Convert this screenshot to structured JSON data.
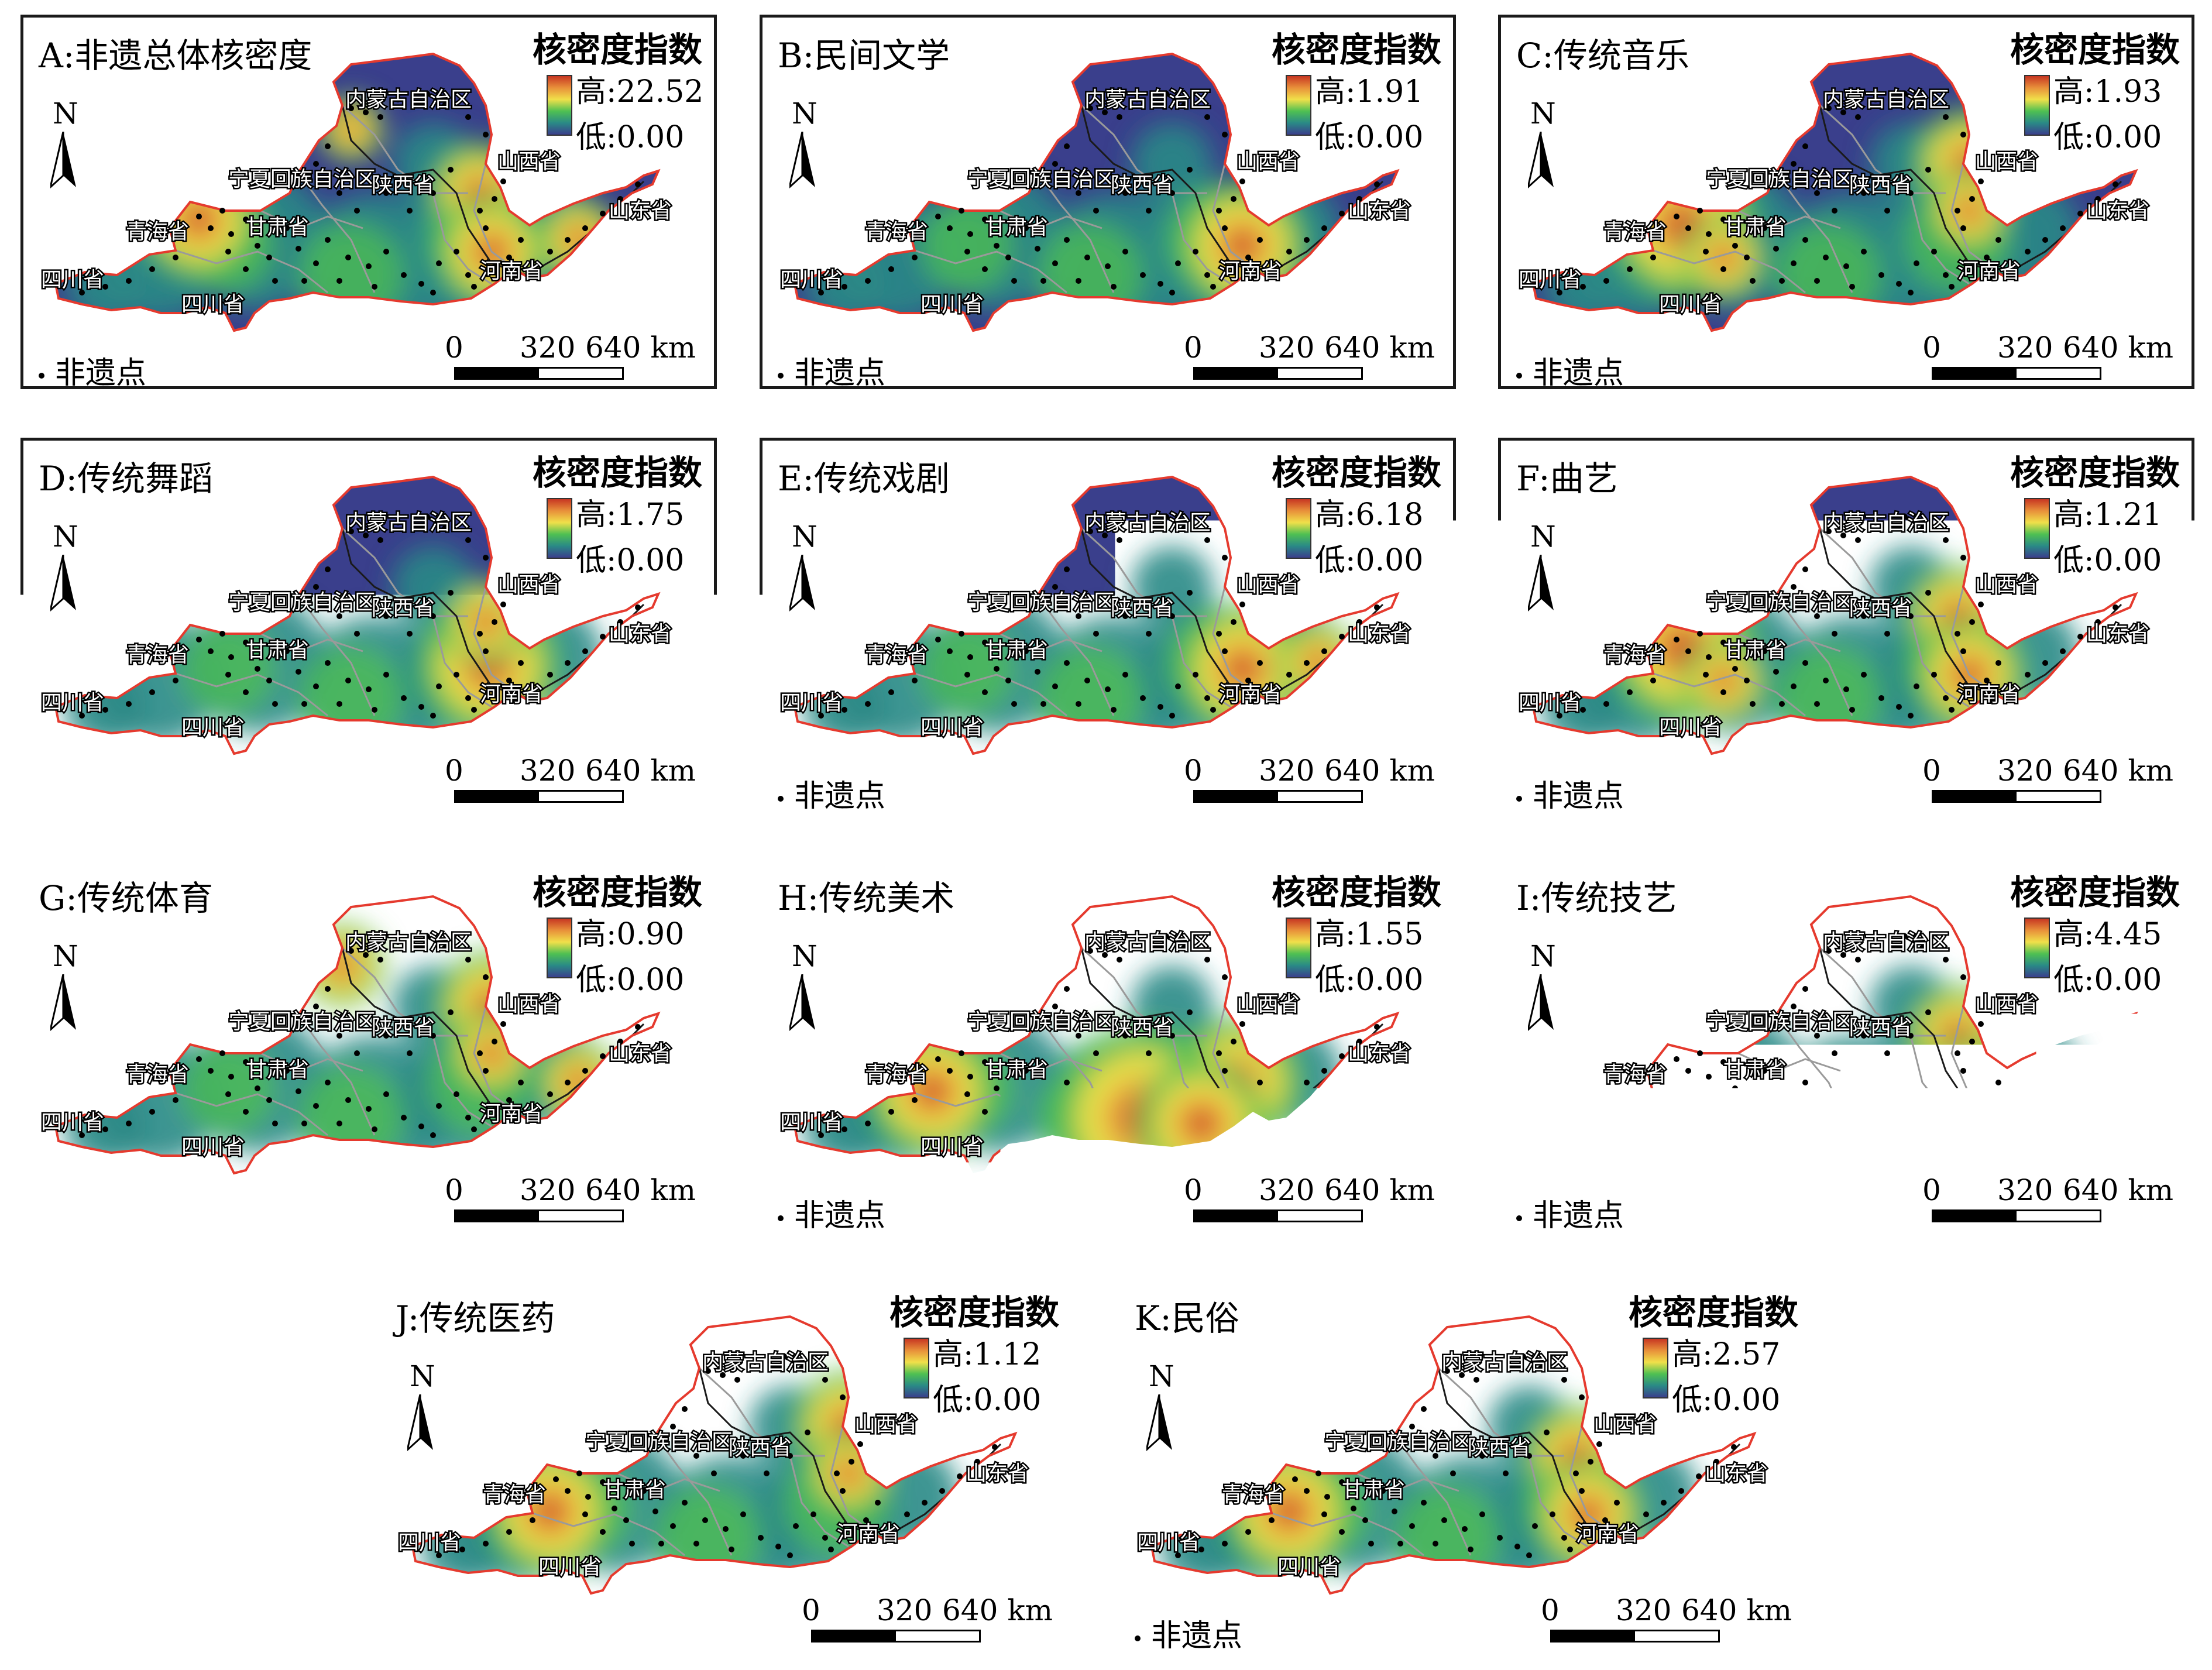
{
  "legend_title": "核密度指数",
  "points_legend_label": "非遗点",
  "scale": {
    "labels": [
      "0",
      "320",
      "640 km"
    ]
  },
  "north_label": "N",
  "province_labels": [
    "内蒙古自治区",
    "山西省",
    "宁夏回族自治区",
    "陕西省",
    "山东省",
    "青海省",
    "甘肃省",
    "河南省",
    "四川省",
    "四川省"
  ],
  "colors": {
    "low": "#3a3f8c",
    "mid_low": "#2a8a86",
    "mid": "#4fc052",
    "mid_high": "#f0e04a",
    "high": "#c73622",
    "boundary": "#e53a2e"
  },
  "panels": [
    {
      "title": "A:非遗总体核密度",
      "high_label": "高:22.52",
      "low_label": "低:0.00",
      "hotspots": [
        "ningxia-qinghai",
        "shanxi-henan",
        "shandong"
      ]
    },
    {
      "title": "B:民间文学",
      "high_label": "高:1.91",
      "low_label": "低:0.00",
      "hotspots": [
        "henan"
      ]
    },
    {
      "title": "C:传统音乐",
      "high_label": "高:1.93",
      "low_label": "低:0.00",
      "hotspots": [
        "qinghai-gansu",
        "shanxi"
      ]
    },
    {
      "title": "D:传统舞蹈",
      "high_label": "高:1.75",
      "low_label": "低:0.00",
      "hotspots": [
        "henan-shanxi"
      ]
    },
    {
      "title": "E:传统戏剧",
      "high_label": "高:6.18",
      "low_label": "低:0.00",
      "hotspots": [
        "henan",
        "shandong"
      ]
    },
    {
      "title": "F:曲艺",
      "high_label": "高:1.21",
      "low_label": "低:0.00",
      "hotspots": [
        "qinghai-gansu",
        "shanxi-henan"
      ]
    },
    {
      "title": "G:传统体育",
      "high_label": "高:0.90",
      "low_label": "低:0.00",
      "hotspots": [
        "shanxi",
        "ningxia",
        "shandong"
      ]
    },
    {
      "title": "H:传统美术",
      "high_label": "高:1.55",
      "low_label": "低:0.00",
      "hotspots": [
        "qinghai",
        "shaanxi-henan"
      ]
    },
    {
      "title": "I:传统技艺",
      "high_label": "高:4.45",
      "low_label": "低:0.00",
      "hotspots": [
        "shanxi-henan"
      ]
    },
    {
      "title": "J:传统医药",
      "high_label": "高:1.12",
      "low_label": "低:0.00",
      "hotspots": [
        "qinghai",
        "shanxi"
      ]
    },
    {
      "title": "K:民俗",
      "high_label": "高:2.57",
      "low_label": "低:0.00",
      "hotspots": [
        "qinghai",
        "shanxi-henan"
      ]
    }
  ]
}
